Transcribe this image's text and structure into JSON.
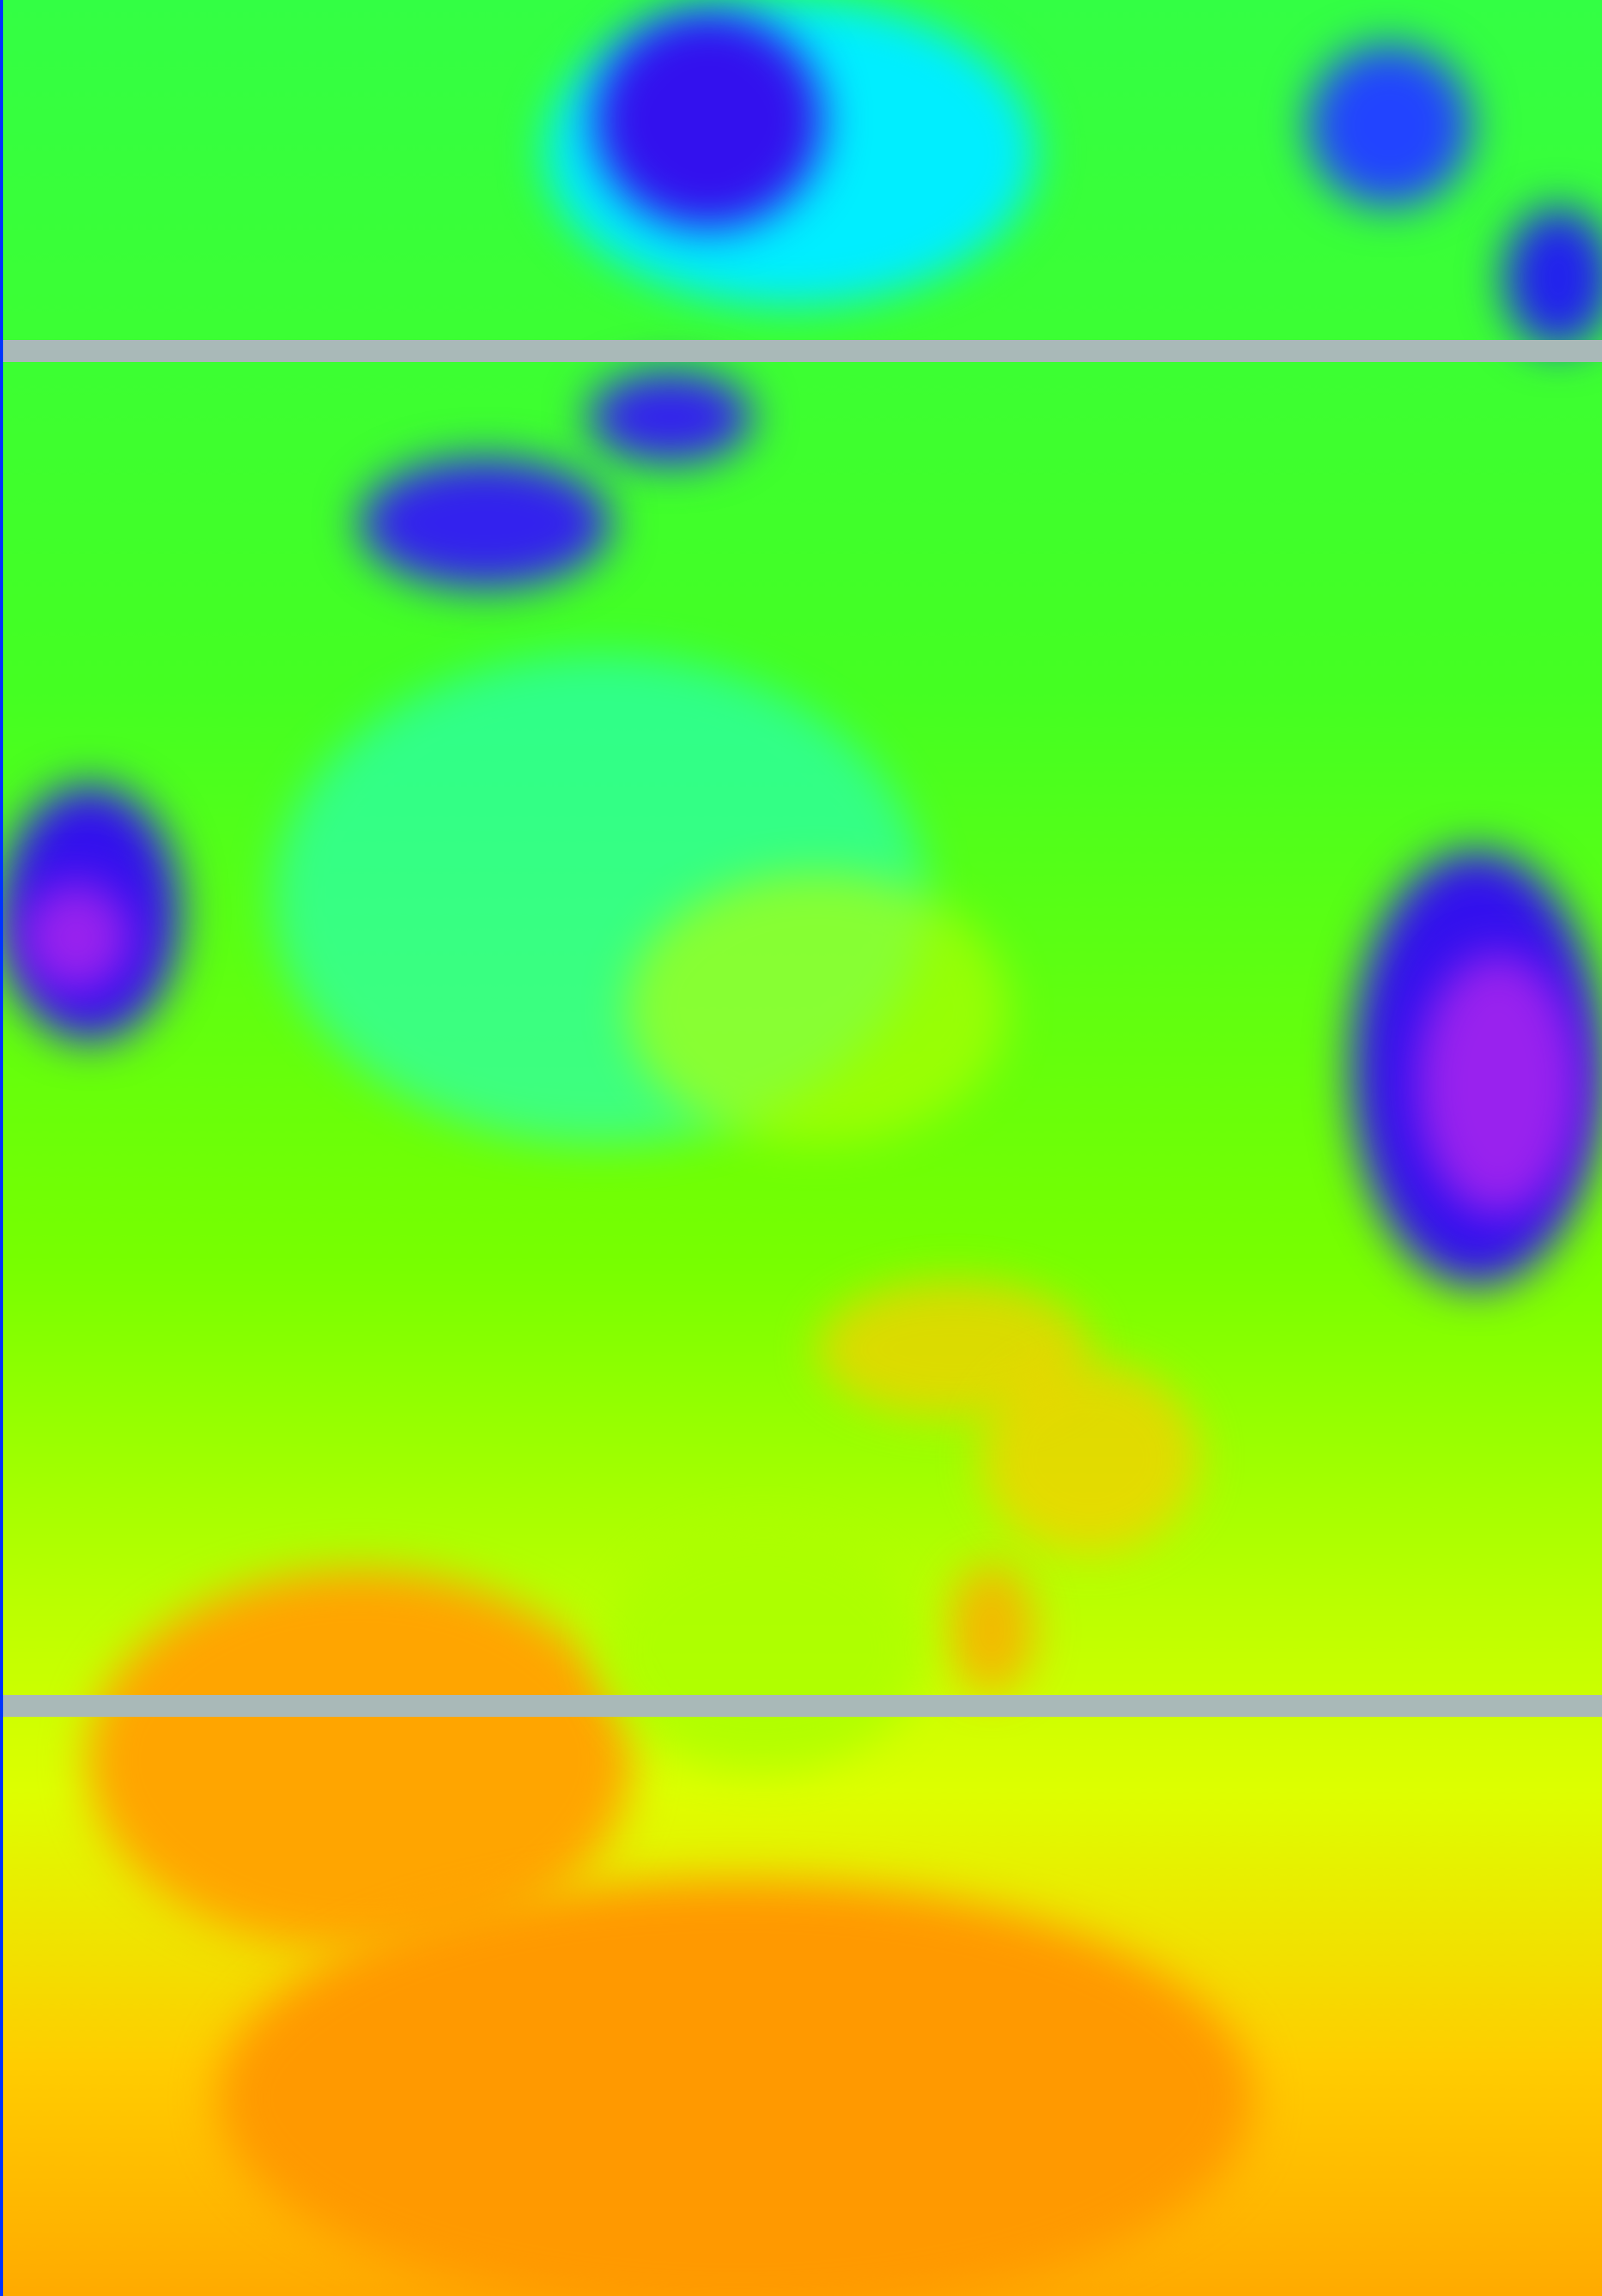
{
  "image": {
    "kind": "false-color satellite thermal image",
    "palette": {
      "cold_cloud": "#3311ee",
      "very_cold": "#9922ee",
      "cloud_edge": "#00ffff",
      "mid": "#33ff22",
      "warm": "#ccff00",
      "hot": "#ffaa00",
      "scan_gap": "#a9b9b8"
    }
  }
}
